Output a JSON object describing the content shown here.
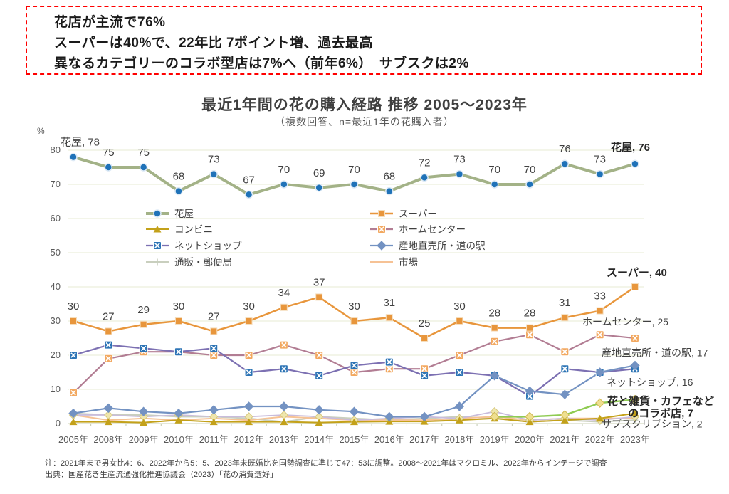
{
  "callout": {
    "border_color": "#FF0000",
    "lines": [
      "花店が主流で76%",
      "スーパーは40%で、22年比 7ポイント増、過去最高",
      "異なるカテゴリーのコラボ型店は7%へ（前年6%）　サブスクは2%"
    ]
  },
  "title": "最近1年間の花の購入経路 推移 2005～2023年",
  "subtitle": "（複数回答、n=最近1年の花購入者）",
  "footnotes": [
    "注：2021年まで男女比4：6、2022年から5：5、2023年未既婚比を国勢調査に準じて47：53に調整。2008～2021年はマクロミル、2022年からインテージで調査",
    "出典：国産花き生産流通強化推進協議会（2023）「花の消費選好」"
  ],
  "chart_data": {
    "type": "line",
    "title": "最近1年間の花の購入経路 推移 2005～2023年",
    "subtitle": "（複数回答、n=最近1年の花購入者）",
    "unit": "%",
    "ylim": [
      0,
      80
    ],
    "yticks": [
      0,
      10,
      20,
      30,
      40,
      50,
      60,
      70,
      80
    ],
    "grid": true,
    "legend_position": "inside-top-two-columns",
    "categories": [
      "2005年",
      "2008年",
      "2009年",
      "2010年",
      "2011年",
      "2012年",
      "2013年",
      "2014年",
      "2015年",
      "2016年",
      "2017年",
      "2018年",
      "2019年",
      "2020年",
      "2021年",
      "2022年",
      "2023年"
    ],
    "series": [
      {
        "name": "通販・郵便局",
        "in_legend": true,
        "legend_slot": 6,
        "color": "#C9CFBE",
        "marker": "plus",
        "marker_color": "#C9CFBE",
        "width": 2,
        "values": [
          3,
          2.5,
          2.5,
          2,
          2,
          1.5,
          0.5,
          2,
          1.5,
          1,
          1.5,
          2,
          1.5,
          0.5,
          1,
          0.5,
          1
        ]
      },
      {
        "name": "市場",
        "in_legend": true,
        "legend_slot": 7,
        "color": "#F6C295",
        "marker": "none",
        "marker_color": "#F6C295",
        "width": 2,
        "values": [
          2.5,
          1,
          1.5,
          1,
          1.5,
          1,
          2,
          1.5,
          1,
          1,
          1,
          1.5,
          2,
          1,
          1.5,
          1.5,
          1.5
        ]
      },
      {
        "name": "サブスクリプション",
        "in_legend": false,
        "color": "#C9BCDC",
        "marker": "diamond",
        "marker_color": "#EFE6AC",
        "marker_stroke": "#D6C77E",
        "marker_size": 4.5,
        "width": 1.8,
        "values": [
          2.5,
          2.5,
          2,
          2.5,
          2,
          2,
          2.5,
          2,
          1,
          1.5,
          2,
          1.5,
          3.5,
          1,
          1.5,
          1,
          2
        ],
        "end_label": "サブスクリプション, 2",
        "end_label_bold": false
      },
      {
        "name": "コンビニ",
        "in_legend": true,
        "legend_slot": 2,
        "color": "#C3A11A",
        "marker": "triangle",
        "marker_color": "#C3A11A",
        "width": 2,
        "values": [
          0.5,
          0.5,
          0.3,
          1,
          0.5,
          0.5,
          0.5,
          0.3,
          0.5,
          0.6,
          0.6,
          1,
          1.5,
          0.5,
          1,
          1.5,
          3
        ]
      },
      {
        "name": "ホームセンター",
        "in_legend": true,
        "legend_slot": 3,
        "color": "#B27D93",
        "marker": "xsquare",
        "marker_color": "#F2A860",
        "width": 2.2,
        "values": [
          9,
          19,
          21,
          21,
          20,
          20,
          23,
          20,
          15,
          16,
          16,
          20,
          24,
          26,
          21,
          26,
          25
        ],
        "end_label": "ホームセンター, 25",
        "end_label_bold": false
      },
      {
        "name": "ネットショップ",
        "in_legend": true,
        "legend_slot": 4,
        "color": "#7C70B2",
        "marker": "xsquare",
        "marker_color": "#2D74B5",
        "width": 2.2,
        "values": [
          20,
          23,
          22,
          21,
          22,
          15,
          16,
          14,
          17,
          18,
          14,
          15,
          14,
          8,
          16,
          15,
          16
        ],
        "end_label": "ネットショップ, 16",
        "end_label_bold": false
      },
      {
        "name": "産地直売所・道の駅",
        "in_legend": true,
        "legend_slot": 5,
        "color": "#7392C2",
        "marker": "diamond",
        "marker_color": "#7392C2",
        "width": 2.2,
        "values": [
          3,
          4.5,
          3.5,
          3,
          4,
          5,
          5,
          4,
          3.5,
          2,
          2,
          5,
          14,
          9.5,
          8.5,
          15,
          17
        ],
        "end_label": "産地直売所・道の駅, 17",
        "end_label_bold": false
      },
      {
        "name": "花と雑貨・カフェなどのコラボ店",
        "in_legend": false,
        "color": "#8FCB52",
        "marker": "diamond",
        "marker_color": "#EFDF90",
        "marker_stroke": "#CDB64E",
        "width": 2.4,
        "values": [
          null,
          null,
          null,
          null,
          null,
          null,
          null,
          null,
          null,
          null,
          null,
          null,
          2,
          2,
          2.5,
          6,
          7
        ],
        "end_label_lines": [
          "花と雑貨・カフェなど",
          "のコラボ店, 7"
        ],
        "end_label_bold": true
      },
      {
        "name": "スーパー",
        "in_legend": true,
        "legend_slot": 1,
        "color": "#E8963C",
        "marker": "square",
        "marker_color": "#E8963C",
        "width": 2.5,
        "values": [
          30,
          27,
          29,
          30,
          27,
          30,
          34,
          37,
          30,
          31,
          25,
          30,
          28,
          28,
          31,
          33,
          40
        ],
        "point_labels": [
          "30",
          "27",
          "29",
          "30",
          "27",
          "30",
          "34",
          "37",
          "30",
          "31",
          "25",
          "30",
          "28",
          "28",
          "31",
          "33",
          ""
        ],
        "end_label": "スーパー, 40",
        "end_label_bold": true
      },
      {
        "name": "花屋",
        "in_legend": true,
        "legend_slot": 0,
        "color": "#A3B287",
        "marker": "circle",
        "marker_color": "#1F72B8",
        "width": 4,
        "values": [
          78,
          75,
          75,
          68,
          73,
          67,
          70,
          69,
          70,
          68,
          72,
          73,
          70,
          70,
          76,
          73,
          76
        ],
        "point_labels": [
          "花屋, 78",
          "75",
          "75",
          "68",
          "73",
          "67",
          "70",
          "69",
          "70",
          "68",
          "72",
          "73",
          "70",
          "70",
          "76",
          "73",
          ""
        ],
        "end_label": "花屋, 76",
        "end_label_bold": true
      }
    ]
  }
}
